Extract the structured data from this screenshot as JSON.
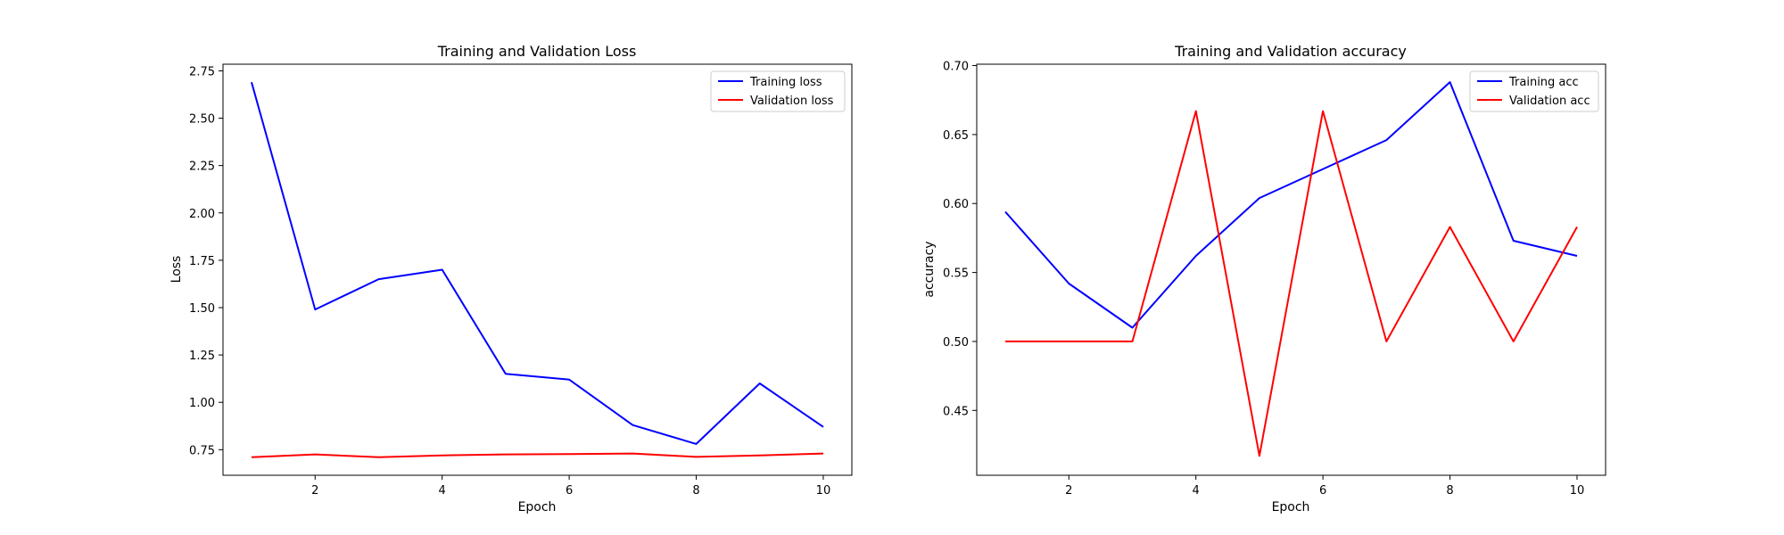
{
  "chart_data": [
    {
      "type": "line",
      "title": "Training and Validation Loss",
      "xlabel": "Epoch",
      "ylabel": "Loss",
      "xlim": [
        0.55,
        10.45
      ],
      "ylim": [
        0.615,
        2.785
      ],
      "xticks": [
        2,
        4,
        6,
        8,
        10
      ],
      "yticks": [
        0.75,
        1.0,
        1.25,
        1.5,
        1.75,
        2.0,
        2.25,
        2.5,
        2.75
      ],
      "ytick_labels": [
        "0.75",
        "1.00",
        "1.25",
        "1.50",
        "1.75",
        "2.00",
        "2.25",
        "2.50",
        "2.75"
      ],
      "x": [
        1,
        2,
        3,
        4,
        5,
        6,
        7,
        8,
        9,
        10
      ],
      "series": [
        {
          "name": "Training loss",
          "color": "#0000ff",
          "values": [
            2.69,
            1.49,
            1.65,
            1.7,
            1.15,
            1.12,
            0.88,
            0.78,
            1.1,
            0.87
          ]
        },
        {
          "name": "Validation loss",
          "color": "#ff0000",
          "values": [
            0.71,
            0.725,
            0.71,
            0.72,
            0.725,
            0.727,
            0.73,
            0.712,
            0.72,
            0.73
          ]
        }
      ],
      "legend": "top-right",
      "grid": false
    },
    {
      "type": "line",
      "title": "Training and Validation accuracy",
      "xlabel": "Epoch",
      "ylabel": "accuracy",
      "xlim": [
        0.55,
        10.45
      ],
      "ylim": [
        0.403,
        0.701
      ],
      "xticks": [
        2,
        4,
        6,
        8,
        10
      ],
      "yticks": [
        0.45,
        0.5,
        0.55,
        0.6,
        0.65,
        0.7
      ],
      "ytick_labels": [
        "0.45",
        "0.50",
        "0.55",
        "0.60",
        "0.65",
        "0.70"
      ],
      "x": [
        1,
        2,
        3,
        4,
        5,
        6,
        7,
        8,
        9,
        10
      ],
      "series": [
        {
          "name": "Training acc",
          "color": "#0000ff",
          "values": [
            0.594,
            0.542,
            0.51,
            0.562,
            0.604,
            0.625,
            0.646,
            0.688,
            0.573,
            0.562
          ]
        },
        {
          "name": "Validation acc",
          "color": "#ff0000",
          "values": [
            0.5,
            0.5,
            0.5,
            0.667,
            0.417,
            0.667,
            0.5,
            0.583,
            0.5,
            0.583
          ]
        }
      ],
      "legend": "top-right",
      "grid": false
    }
  ]
}
